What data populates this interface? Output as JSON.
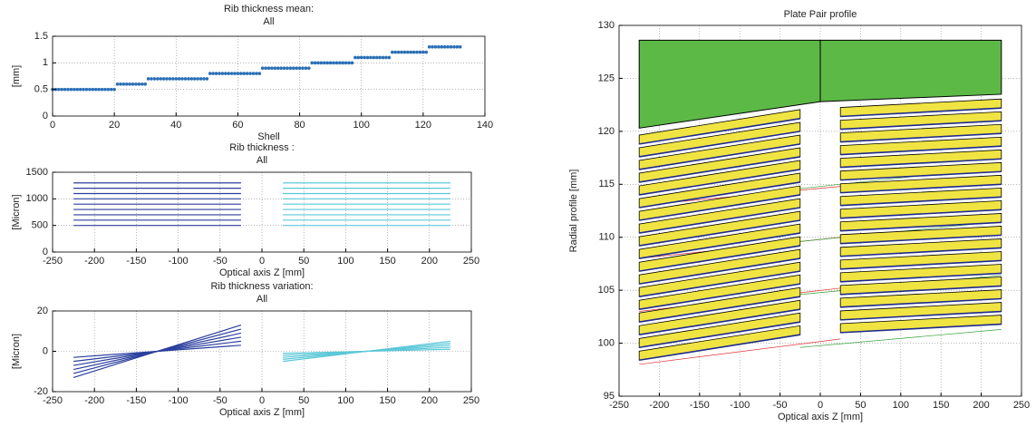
{
  "chart_data": [
    {
      "type": "scatter",
      "title": "Rib thickness mean:",
      "subtitle": "All",
      "xlabel": "Shell",
      "ylabel": "[mm]",
      "xlim": [
        0,
        140
      ],
      "xticks": [
        0,
        20,
        40,
        60,
        80,
        100,
        120,
        140
      ],
      "ylim": [
        0,
        1.5
      ],
      "yticks": [
        0,
        0.5,
        1,
        1.5
      ],
      "grid": true,
      "series": [
        {
          "color": "#2a6fb5",
          "x": [
            0,
            1,
            2,
            3,
            4,
            5,
            6,
            7,
            8,
            9,
            10,
            11,
            12,
            13,
            14,
            15,
            16,
            17,
            18,
            19,
            20,
            21,
            22,
            23,
            24,
            25,
            26,
            27,
            28,
            29,
            30,
            31,
            32,
            33,
            34,
            35,
            36,
            37,
            38,
            39,
            40,
            41,
            42,
            43,
            44,
            45,
            46,
            47,
            48,
            49,
            50,
            51,
            52,
            53,
            54,
            55,
            56,
            57,
            58,
            59,
            60,
            61,
            62,
            63,
            64,
            65,
            66,
            67,
            68,
            69,
            70,
            71,
            72,
            73,
            74,
            75,
            76,
            77,
            78,
            79,
            80,
            81,
            82,
            83,
            84,
            85,
            86,
            87,
            88,
            89,
            90,
            91,
            92,
            93,
            94,
            95,
            96,
            97,
            98,
            99,
            100,
            101,
            102,
            103,
            104,
            105,
            106,
            107,
            108,
            109,
            110,
            111,
            112,
            113,
            114,
            115,
            116,
            117,
            118,
            119,
            120,
            121,
            122,
            123,
            124,
            125,
            126,
            127,
            128,
            129,
            130,
            131,
            132
          ],
          "values": [
            0.5,
            0.5,
            0.5,
            0.5,
            0.5,
            0.5,
            0.5,
            0.5,
            0.5,
            0.5,
            0.5,
            0.5,
            0.5,
            0.5,
            0.5,
            0.5,
            0.5,
            0.5,
            0.5,
            0.5,
            0.5,
            0.6,
            0.6,
            0.6,
            0.6,
            0.6,
            0.6,
            0.6,
            0.6,
            0.6,
            0.6,
            0.7,
            0.7,
            0.7,
            0.7,
            0.7,
            0.7,
            0.7,
            0.7,
            0.7,
            0.7,
            0.7,
            0.7,
            0.7,
            0.7,
            0.7,
            0.7,
            0.7,
            0.7,
            0.7,
            0.7,
            0.8,
            0.8,
            0.8,
            0.8,
            0.8,
            0.8,
            0.8,
            0.8,
            0.8,
            0.8,
            0.8,
            0.8,
            0.8,
            0.8,
            0.8,
            0.8,
            0.8,
            0.9,
            0.9,
            0.9,
            0.9,
            0.9,
            0.9,
            0.9,
            0.9,
            0.9,
            0.9,
            0.9,
            0.9,
            0.9,
            0.9,
            0.9,
            0.9,
            1.0,
            1.0,
            1.0,
            1.0,
            1.0,
            1.0,
            1.0,
            1.0,
            1.0,
            1.0,
            1.0,
            1.0,
            1.0,
            1.0,
            1.1,
            1.1,
            1.1,
            1.1,
            1.1,
            1.1,
            1.1,
            1.1,
            1.1,
            1.1,
            1.1,
            1.1,
            1.2,
            1.2,
            1.2,
            1.2,
            1.2,
            1.2,
            1.2,
            1.2,
            1.2,
            1.2,
            1.2,
            1.2,
            1.3,
            1.3,
            1.3,
            1.3,
            1.3,
            1.3,
            1.3,
            1.3,
            1.3,
            1.3,
            1.3
          ]
        }
      ]
    },
    {
      "type": "line",
      "title": "Rib thickness :",
      "subtitle": "All",
      "xlabel": "Optical axis Z [mm]",
      "ylabel": "[Micron]",
      "xlim": [
        -250,
        250
      ],
      "xticks": [
        -250,
        -200,
        -150,
        -100,
        -50,
        0,
        50,
        100,
        150,
        200,
        250
      ],
      "ylim": [
        0,
        1500
      ],
      "yticks": [
        0,
        500,
        1000,
        1500
      ],
      "grid": true,
      "series": [
        {
          "color": "#2b3f9e",
          "x": [
            -225,
            -25
          ],
          "values": [
            500,
            500
          ]
        },
        {
          "color": "#2b3f9e",
          "x": [
            -225,
            -25
          ],
          "values": [
            600,
            600
          ]
        },
        {
          "color": "#2b3f9e",
          "x": [
            -225,
            -25
          ],
          "values": [
            700,
            700
          ]
        },
        {
          "color": "#2b3f9e",
          "x": [
            -225,
            -25
          ],
          "values": [
            800,
            800
          ]
        },
        {
          "color": "#2b3f9e",
          "x": [
            -225,
            -25
          ],
          "values": [
            900,
            900
          ]
        },
        {
          "color": "#2b3f9e",
          "x": [
            -225,
            -25
          ],
          "values": [
            1000,
            1000
          ]
        },
        {
          "color": "#2b3f9e",
          "x": [
            -225,
            -25
          ],
          "values": [
            1100,
            1100
          ]
        },
        {
          "color": "#2b3f9e",
          "x": [
            -225,
            -25
          ],
          "values": [
            1200,
            1200
          ]
        },
        {
          "color": "#2b3f9e",
          "x": [
            -225,
            -25
          ],
          "values": [
            1300,
            1300
          ]
        },
        {
          "color": "#5bc8d8",
          "x": [
            25,
            225
          ],
          "values": [
            500,
            500
          ]
        },
        {
          "color": "#5bc8d8",
          "x": [
            25,
            225
          ],
          "values": [
            600,
            600
          ]
        },
        {
          "color": "#5bc8d8",
          "x": [
            25,
            225
          ],
          "values": [
            700,
            700
          ]
        },
        {
          "color": "#5bc8d8",
          "x": [
            25,
            225
          ],
          "values": [
            800,
            800
          ]
        },
        {
          "color": "#5bc8d8",
          "x": [
            25,
            225
          ],
          "values": [
            900,
            900
          ]
        },
        {
          "color": "#5bc8d8",
          "x": [
            25,
            225
          ],
          "values": [
            1000,
            1000
          ]
        },
        {
          "color": "#5bc8d8",
          "x": [
            25,
            225
          ],
          "values": [
            1100,
            1100
          ]
        },
        {
          "color": "#5bc8d8",
          "x": [
            25,
            225
          ],
          "values": [
            1200,
            1200
          ]
        },
        {
          "color": "#5bc8d8",
          "x": [
            25,
            225
          ],
          "values": [
            1300,
            1300
          ]
        }
      ]
    },
    {
      "type": "line",
      "title": "Rib thickness variation:",
      "subtitle": "All",
      "xlabel": "Optical axis Z [mm]",
      "ylabel": "[Micron]",
      "xlim": [
        -250,
        250
      ],
      "xticks": [
        -250,
        -200,
        -150,
        -100,
        -50,
        0,
        50,
        100,
        150,
        200,
        250
      ],
      "ylim": [
        -20,
        20
      ],
      "yticks": [
        -20,
        0,
        20
      ],
      "grid": true,
      "series": [
        {
          "color": "#2b3f9e",
          "x": [
            -225,
            -25
          ],
          "values": [
            -3,
            3
          ]
        },
        {
          "color": "#2b3f9e",
          "x": [
            -225,
            -25
          ],
          "values": [
            -5,
            5
          ]
        },
        {
          "color": "#2b3f9e",
          "x": [
            -225,
            -25
          ],
          "values": [
            -7,
            7
          ]
        },
        {
          "color": "#2b3f9e",
          "x": [
            -225,
            -25
          ],
          "values": [
            -9,
            9
          ]
        },
        {
          "color": "#2b3f9e",
          "x": [
            -225,
            -25
          ],
          "values": [
            -11,
            11
          ]
        },
        {
          "color": "#2b3f9e",
          "x": [
            -225,
            -25
          ],
          "values": [
            -13,
            13
          ]
        },
        {
          "color": "#5bc8d8",
          "x": [
            25,
            225
          ],
          "values": [
            -1,
            1
          ]
        },
        {
          "color": "#5bc8d8",
          "x": [
            25,
            225
          ],
          "values": [
            -2,
            2
          ]
        },
        {
          "color": "#5bc8d8",
          "x": [
            25,
            225
          ],
          "values": [
            -3,
            3
          ]
        },
        {
          "color": "#5bc8d8",
          "x": [
            25,
            225
          ],
          "values": [
            -4,
            4
          ]
        },
        {
          "color": "#5bc8d8",
          "x": [
            25,
            225
          ],
          "values": [
            -5,
            5
          ]
        }
      ]
    },
    {
      "type": "profile",
      "title": "Plate Pair profile",
      "xlabel": "Optical axis Z [mm]",
      "ylabel": "Radial profile [mm]",
      "xlim": [
        -250,
        250
      ],
      "xticks": [
        -250,
        -200,
        -150,
        -100,
        -50,
        0,
        50,
        100,
        150,
        200,
        250
      ],
      "ylim": [
        95,
        130
      ],
      "yticks": [
        95,
        100,
        105,
        110,
        115,
        120,
        125,
        130
      ],
      "grid": true,
      "shield": {
        "color": "#5cb946",
        "x": [
          -225,
          -225,
          0,
          225,
          225,
          0
        ],
        "values": [
          120.3,
          128.6,
          128.6,
          128.6,
          123.5,
          122.8
        ]
      },
      "divider": {
        "x": [
          0,
          0
        ],
        "values": [
          122.8,
          128.6
        ]
      },
      "plates": [
        {
          "color": "#f0e442",
          "x": [
            -225,
            -25
          ],
          "thickness": 0.85,
          "y_left": [
            98.4,
            99.6,
            100.8,
            102.0,
            103.2,
            104.4,
            105.6,
            106.8,
            108.0,
            109.2,
            110.4,
            111.6,
            112.8,
            114.0,
            115.2,
            116.4,
            117.6,
            118.8
          ],
          "y_right": [
            100.8,
            102.0,
            103.2,
            104.4,
            105.6,
            106.8,
            108.0,
            109.2,
            110.4,
            111.6,
            112.8,
            114.0,
            115.2,
            116.4,
            117.6,
            118.8,
            120.0,
            121.2
          ]
        },
        {
          "color": "#f0e442",
          "x": [
            25,
            225
          ],
          "thickness": 0.85,
          "y_left": [
            101.0,
            102.2,
            103.4,
            104.6,
            105.8,
            107.0,
            108.2,
            109.4,
            110.6,
            111.8,
            113.0,
            114.2,
            115.4,
            116.6,
            117.8,
            119.0,
            120.2,
            121.4
          ],
          "y_right": [
            101.8,
            103.0,
            104.2,
            105.4,
            106.6,
            107.8,
            109.0,
            110.2,
            111.4,
            112.6,
            113.8,
            115.0,
            116.2,
            117.4,
            118.6,
            119.8,
            121.0,
            122.2
          ]
        }
      ],
      "rays": [
        {
          "color": "#e03030",
          "x": [
            -225,
            25
          ],
          "values": [
            98.0,
            100.4
          ]
        },
        {
          "color": "#e03030",
          "x": [
            -225,
            25
          ],
          "values": [
            103.0,
            105.2
          ]
        },
        {
          "color": "#e03030",
          "x": [
            -225,
            25
          ],
          "values": [
            108.0,
            110.0
          ]
        },
        {
          "color": "#e03030",
          "x": [
            -225,
            25
          ],
          "values": [
            113.0,
            114.8
          ]
        },
        {
          "color": "#30a030",
          "x": [
            -25,
            225
          ],
          "values": [
            99.6,
            101.3
          ]
        },
        {
          "color": "#30a030",
          "x": [
            -25,
            225
          ],
          "values": [
            104.6,
            106.4
          ]
        },
        {
          "color": "#30a030",
          "x": [
            -25,
            225
          ],
          "values": [
            109.6,
            111.5
          ]
        },
        {
          "color": "#30a030",
          "x": [
            -25,
            225
          ],
          "values": [
            114.6,
            116.6
          ]
        }
      ]
    }
  ]
}
